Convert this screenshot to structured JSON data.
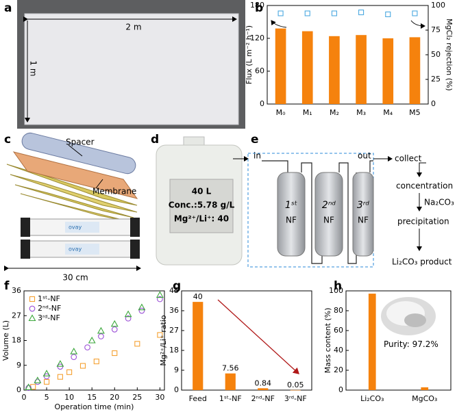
{
  "panel_labels": [
    "a",
    "b",
    "c",
    "d",
    "e",
    "f",
    "g",
    "h"
  ],
  "photo_a": {
    "width_label": "2 m",
    "height_label": "1 m"
  },
  "module_c": {
    "spacer": "Spacer",
    "membrane": "Membrane",
    "brand": "ovay",
    "length": "30 cm"
  },
  "container_d": {
    "volume": "40 L",
    "concentration": "Conc.:5.78 g/L",
    "ratio": "Mg²⁺/Li⁺: 40"
  },
  "process_e": {
    "inlet": "in",
    "outlet": "out",
    "stages": [
      {
        "order": "1ˢᵗ",
        "label": "NF"
      },
      {
        "order": "2ⁿᵈ",
        "label": "NF"
      },
      {
        "order": "3ʳᵈ",
        "label": "NF"
      }
    ],
    "steps": [
      "collect",
      "concentration",
      "precipitation",
      "Li₂CO₃ product"
    ],
    "reagent": "Na₂CO₃"
  },
  "chart_data": [
    {
      "type": "bar",
      "categories": [
        "M₀",
        "M₁",
        "M₂",
        "M₃",
        "M₄",
        "M5"
      ],
      "ylabel": "Flux (L m⁻² h⁻¹)",
      "y2label": "MgCl₂ rejection (%)",
      "ylim": [
        0,
        180
      ],
      "yticks": [
        0,
        60,
        120,
        180
      ],
      "y2lim": [
        0,
        100
      ],
      "y2ticks": [
        0,
        25,
        50,
        75,
        100
      ],
      "series": [
        {
          "type": "bar",
          "color": "#f5820d",
          "values": [
            138,
            133,
            124,
            126,
            120,
            122
          ]
        },
        {
          "type": "scatter",
          "marker": "square",
          "axis": "y2",
          "color": "#4aa8e0",
          "values": [
            92,
            92,
            92,
            93,
            91,
            92
          ]
        }
      ]
    },
    {
      "type": "scatter",
      "xlabel": "Operation time (min)",
      "ylabel": "Volume (L)",
      "xlim": [
        0,
        31
      ],
      "xticks": [
        0,
        5,
        10,
        15,
        20,
        25,
        30
      ],
      "ylim": [
        0,
        36
      ],
      "yticks": [
        0,
        9,
        18,
        27,
        36
      ],
      "legend": "upper left",
      "series": [
        {
          "name": "1ˢᵗ-NF",
          "marker": "square",
          "color": "#f5a030",
          "x": [
            2,
            5,
            8,
            10,
            13,
            16,
            20,
            25,
            30
          ],
          "values": [
            1.2,
            3,
            4.8,
            6.5,
            8.8,
            10.4,
            13.4,
            16.8,
            20
          ]
        },
        {
          "name": "2ⁿᵈ-NF",
          "marker": "circle",
          "color": "#9b4fd6",
          "x": [
            1,
            3,
            5,
            8,
            11,
            14,
            17,
            20,
            23,
            26,
            30
          ],
          "values": [
            0.8,
            3,
            5,
            8.5,
            12,
            15.5,
            19.5,
            22,
            26,
            28.8,
            33
          ]
        },
        {
          "name": "3ʳᵈ-NF",
          "marker": "triangle",
          "color": "#3aa63a",
          "x": [
            1,
            3,
            5,
            8,
            11,
            15,
            17,
            20,
            23,
            26,
            30
          ],
          "values": [
            1,
            3.5,
            6,
            9.5,
            14,
            18,
            21.5,
            24,
            27.5,
            30,
            34.5
          ]
        }
      ]
    },
    {
      "type": "bar",
      "ylabel": "Mg²⁺/Li⁺ ratio",
      "categories": [
        "Feed",
        "1ˢᵗ-NF",
        "2ⁿᵈ-NF",
        "3ʳᵈ-NF"
      ],
      "ylim": [
        0,
        45
      ],
      "yticks": [
        0,
        9,
        18,
        27,
        36,
        45
      ],
      "data_labels": true,
      "series": [
        {
          "type": "bar",
          "color": "#f5820d",
          "values": [
            40,
            7.56,
            0.84,
            0.05
          ]
        }
      ]
    },
    {
      "type": "bar",
      "ylabel": "Mass content (%)",
      "categories": [
        "Li₂CO₃",
        "MgCO₃"
      ],
      "ylim": [
        0,
        100
      ],
      "yticks": [
        0,
        20,
        40,
        60,
        80,
        100
      ],
      "annotation": "Purity: 97.2%",
      "series": [
        {
          "type": "bar",
          "color": "#f5820d",
          "values": [
            97.2,
            2.8
          ]
        }
      ]
    }
  ]
}
